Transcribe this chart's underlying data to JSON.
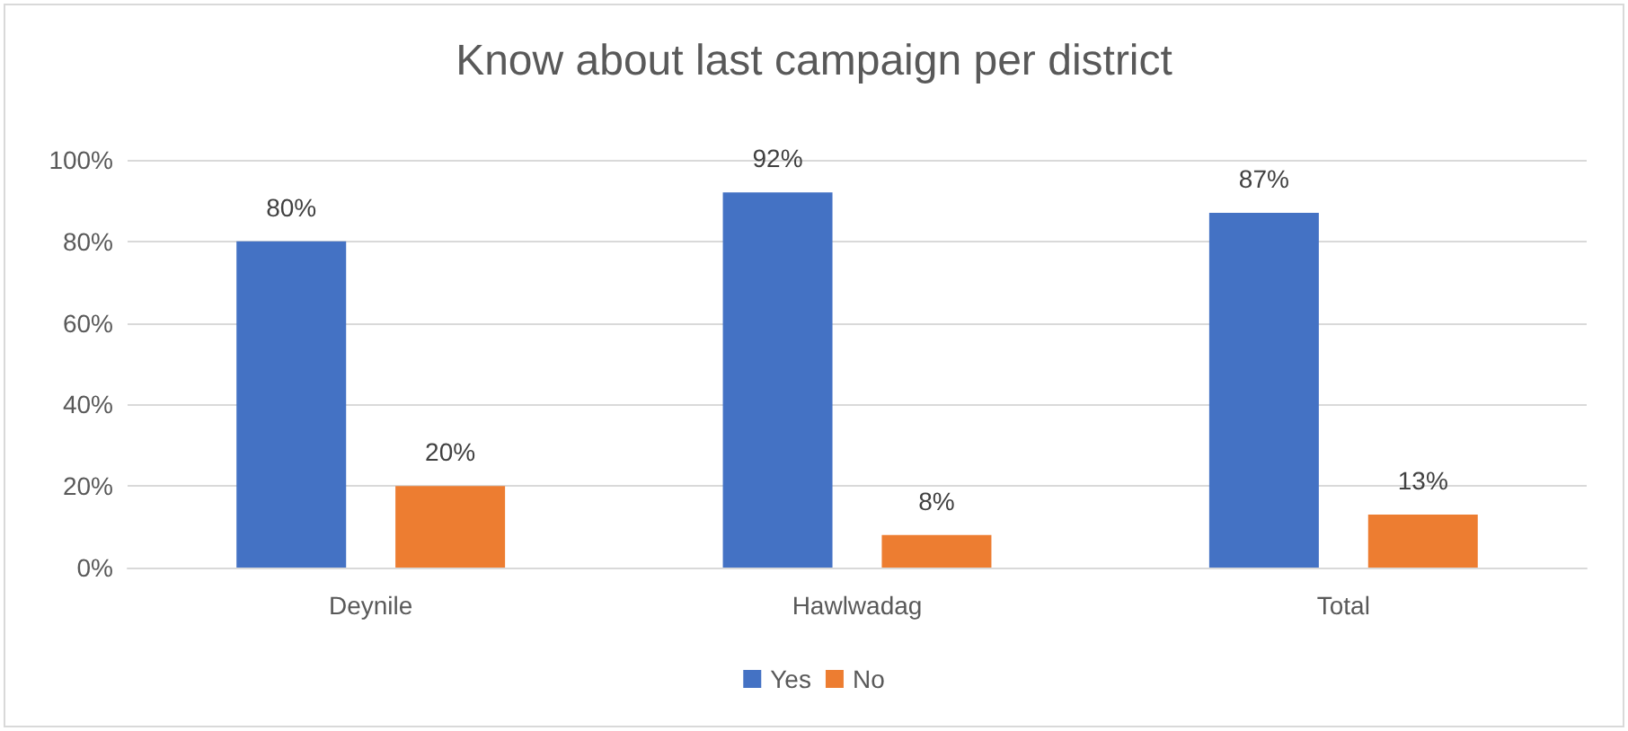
{
  "chart_data": {
    "type": "bar",
    "title": "Know about last campaign per district",
    "categories": [
      "Deynile",
      "Hawlwadag",
      "Total"
    ],
    "series": [
      {
        "name": "Yes",
        "color": "#4472c4",
        "values": [
          80,
          92,
          87
        ],
        "value_labels": [
          "80%",
          "92%",
          "87%"
        ]
      },
      {
        "name": "No",
        "color": "#ed7d31",
        "values": [
          20,
          8,
          13
        ],
        "value_labels": [
          "20%",
          "8%",
          "13%"
        ]
      }
    ],
    "ylim": [
      0,
      100
    ],
    "yticks": [
      {
        "value": 0,
        "label": "0%"
      },
      {
        "value": 20,
        "label": "20%"
      },
      {
        "value": 40,
        "label": "40%"
      },
      {
        "value": 60,
        "label": "60%"
      },
      {
        "value": 80,
        "label": "80%"
      },
      {
        "value": 100,
        "label": "100%"
      }
    ],
    "grid": "y",
    "legend": "bottom"
  }
}
